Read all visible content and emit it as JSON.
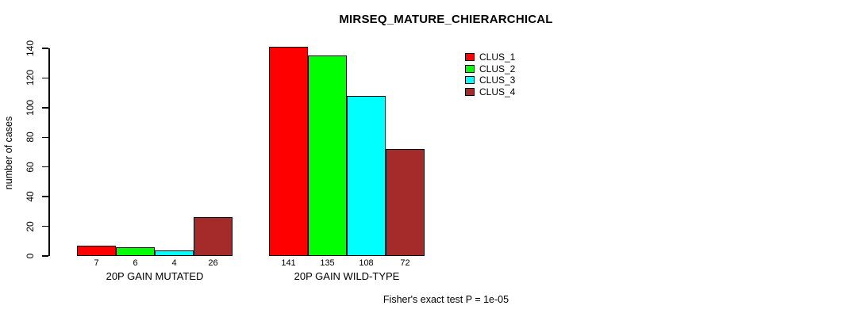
{
  "chart_data": {
    "type": "bar",
    "title": "MIRSEQ_MATURE_CHIERARCHICAL",
    "ylabel": "number of cases",
    "ylim": [
      0,
      140
    ],
    "yticks": [
      0,
      20,
      40,
      60,
      80,
      100,
      120,
      140
    ],
    "categories": [
      "20P GAIN MUTATED",
      "20P GAIN WILD-TYPE"
    ],
    "series": [
      {
        "name": "CLUS_1",
        "color": "#FF0000",
        "values": [
          7,
          141
        ]
      },
      {
        "name": "CLUS_2",
        "color": "#00FF00",
        "values": [
          6,
          135
        ]
      },
      {
        "name": "CLUS_3",
        "color": "#00FFFF",
        "values": [
          4,
          108
        ]
      },
      {
        "name": "CLUS_4",
        "color": "#A52A2A",
        "values": [
          26,
          72
        ]
      }
    ],
    "bar_value_labels": [
      [
        "7",
        "6",
        "4",
        "26"
      ],
      [
        "141",
        "135",
        "108",
        "72"
      ]
    ],
    "legend_position": "top-right",
    "grid": false,
    "background": "#FFFFFF",
    "footnote": "Fisher's exact test P = 1e-05"
  }
}
